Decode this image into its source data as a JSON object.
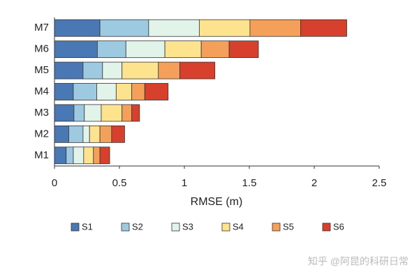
{
  "chart_data": {
    "type": "stacked-barh",
    "xlabel": "RMSE (m)",
    "categories": [
      "M1",
      "M2",
      "M3",
      "M4",
      "M5",
      "M6",
      "M7"
    ],
    "series": [
      {
        "name": "S1",
        "color": "#4a78b5",
        "values": [
          0.09,
          0.11,
          0.15,
          0.145,
          0.22,
          0.33,
          0.35
        ]
      },
      {
        "name": "S2",
        "color": "#9ecae1",
        "values": [
          0.055,
          0.11,
          0.08,
          0.18,
          0.15,
          0.22,
          0.375
        ]
      },
      {
        "name": "S3",
        "color": "#e2f3ea",
        "values": [
          0.08,
          0.05,
          0.13,
          0.15,
          0.15,
          0.3,
          0.39
        ]
      },
      {
        "name": "S4",
        "color": "#fee38f",
        "values": [
          0.075,
          0.08,
          0.16,
          0.12,
          0.28,
          0.28,
          0.39
        ]
      },
      {
        "name": "S5",
        "color": "#f5a05a",
        "values": [
          0.05,
          0.09,
          0.075,
          0.1,
          0.165,
          0.215,
          0.39
        ]
      },
      {
        "name": "S6",
        "color": "#d7402d",
        "values": [
          0.075,
          0.1,
          0.06,
          0.18,
          0.27,
          0.225,
          0.355
        ]
      }
    ],
    "xlim": [
      0,
      2.5
    ],
    "xticks": [
      0,
      0.5,
      1,
      1.5,
      2,
      2.5
    ],
    "watermark": "知乎 @阿昆的科研日常"
  }
}
